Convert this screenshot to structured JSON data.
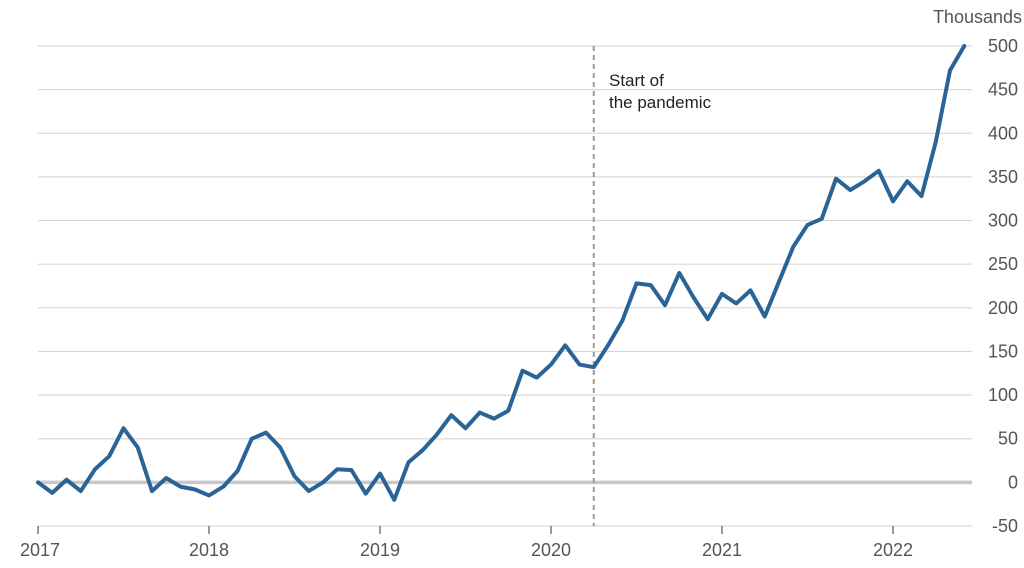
{
  "chart_data": {
    "type": "line",
    "title": "",
    "xlabel": "",
    "ylabel": "",
    "y_unit_label": "Thousands",
    "ylim": [
      -50,
      500
    ],
    "y_ticks": [
      500,
      450,
      400,
      350,
      300,
      250,
      200,
      150,
      100,
      50,
      0,
      -50
    ],
    "x_ticks": [
      "2017",
      "2018",
      "2019",
      "2020",
      "2021",
      "2022"
    ],
    "xlim": [
      "2017-01",
      "2022-06"
    ],
    "grid": "horizontal",
    "zero_line": true,
    "colors": {
      "series": "#2a6496",
      "grid": "#d9d9d9",
      "zero_line": "#c8c8c8",
      "event_line": "#999999"
    },
    "annotation": {
      "lines": [
        "Start of",
        "the pandemic"
      ],
      "x": "2020-04"
    },
    "series": [
      {
        "x": [
          "2017-01",
          "2017-02",
          "2017-03",
          "2017-04",
          "2017-05",
          "2017-06",
          "2017-07",
          "2017-08",
          "2017-09",
          "2017-10",
          "2017-11",
          "2017-12",
          "2018-01",
          "2018-02",
          "2018-03",
          "2018-04",
          "2018-05",
          "2018-06",
          "2018-07",
          "2018-08",
          "2018-09",
          "2018-10",
          "2018-11",
          "2018-12",
          "2019-01",
          "2019-02",
          "2019-03",
          "2019-04",
          "2019-05",
          "2019-06",
          "2019-07",
          "2019-08",
          "2019-09",
          "2019-10",
          "2019-11",
          "2019-12",
          "2020-01",
          "2020-02",
          "2020-03",
          "2020-04",
          "2020-05",
          "2020-06",
          "2020-07",
          "2020-08",
          "2020-09",
          "2020-10",
          "2020-11",
          "2020-12",
          "2021-01",
          "2021-02",
          "2021-03",
          "2021-04",
          "2021-05",
          "2021-06",
          "2021-07",
          "2021-08",
          "2021-09",
          "2021-10",
          "2021-11",
          "2021-12",
          "2022-01",
          "2022-02",
          "2022-03",
          "2022-04",
          "2022-05",
          "2022-06"
        ],
        "y": [
          0,
          -12,
          3,
          -10,
          15,
          30,
          62,
          40,
          -10,
          5,
          -5,
          -8,
          -15,
          -5,
          13,
          50,
          57,
          40,
          7,
          -10,
          0,
          15,
          14,
          -13,
          10,
          -20,
          23,
          37,
          55,
          77,
          62,
          80,
          73,
          82,
          128,
          120,
          135,
          157,
          135,
          132,
          157,
          185,
          228,
          226,
          203,
          240,
          212,
          187,
          216,
          205,
          220,
          190,
          230,
          270,
          295,
          302,
          348,
          335,
          345,
          357,
          322,
          345,
          328,
          390,
          472,
          500
        ]
      }
    ]
  }
}
